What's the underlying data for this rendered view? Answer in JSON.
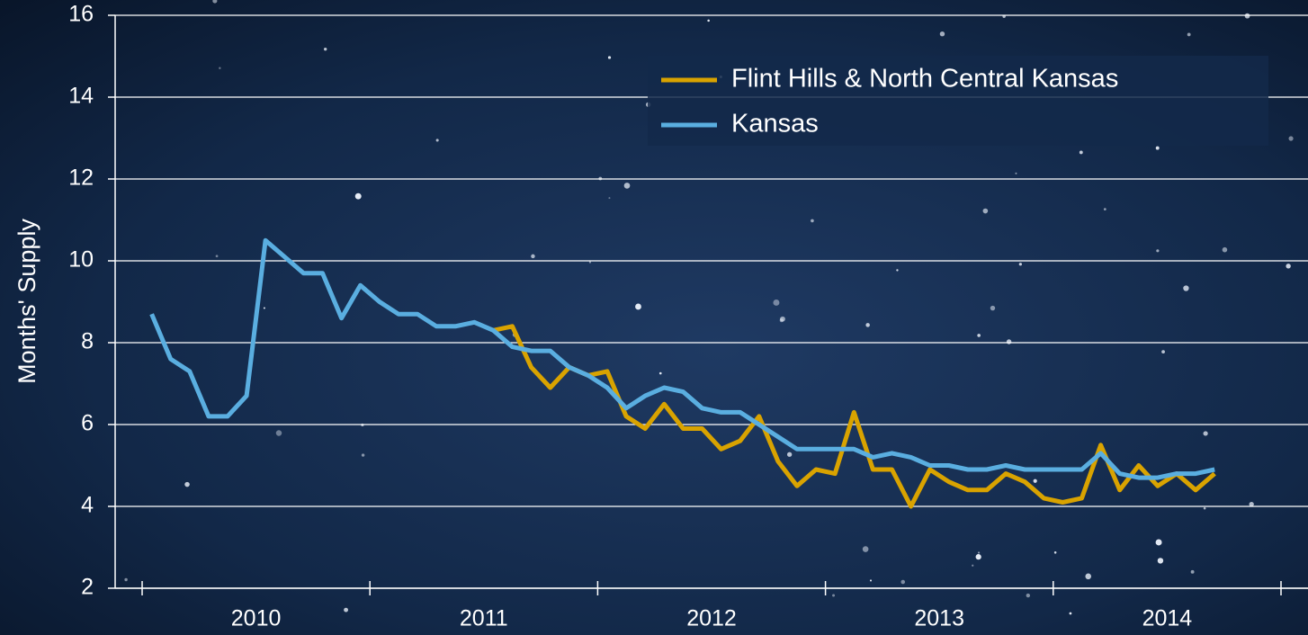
{
  "chart_data": {
    "type": "line",
    "y_label": "Months' Supply",
    "categories": [
      null,
      null,
      null,
      null,
      null,
      null,
      "2010",
      null,
      null,
      null,
      null,
      null,
      null,
      null,
      null,
      null,
      null,
      null,
      "2011",
      null,
      null,
      null,
      null,
      null,
      null,
      null,
      null,
      null,
      null,
      null,
      "2012",
      null,
      null,
      null,
      null,
      null,
      null,
      null,
      null,
      null,
      null,
      null,
      "2013",
      null,
      null,
      null,
      null,
      null,
      null,
      null,
      null,
      null,
      null,
      null,
      "2014",
      null,
      null,
      null,
      null,
      null
    ],
    "series": [
      {
        "name": "Flint Hills & North Central Kansas",
        "color": "#d9a300",
        "values": [
          null,
          null,
          null,
          null,
          null,
          null,
          null,
          null,
          null,
          null,
          null,
          null,
          null,
          null,
          null,
          null,
          null,
          null,
          8.3,
          8.4,
          7.4,
          6.9,
          7.4,
          7.2,
          7.3,
          6.2,
          5.9,
          6.5,
          5.9,
          5.9,
          5.4,
          5.6,
          6.2,
          5.1,
          4.5,
          4.9,
          4.8,
          6.3,
          4.9,
          4.9,
          4.0,
          4.9,
          4.6,
          4.4,
          4.4,
          4.8,
          4.6,
          4.2,
          4.1,
          4.2,
          5.5,
          4.4,
          5.0,
          4.5,
          4.8,
          4.4,
          4.8,
          null,
          null,
          null
        ]
      },
      {
        "name": "Kansas",
        "color": "#5aaee0",
        "values": [
          8.7,
          7.6,
          7.3,
          6.2,
          6.2,
          6.7,
          10.5,
          10.1,
          9.7,
          9.7,
          8.6,
          9.4,
          9.0,
          8.7,
          8.7,
          8.4,
          8.4,
          8.5,
          8.3,
          7.9,
          7.8,
          7.8,
          7.4,
          7.2,
          6.9,
          6.4,
          6.7,
          6.9,
          6.8,
          6.4,
          6.3,
          6.3,
          6.0,
          5.7,
          5.4,
          5.4,
          5.4,
          5.4,
          5.2,
          5.3,
          5.2,
          5.0,
          5.0,
          4.9,
          4.9,
          5.0,
          4.9,
          4.9,
          4.9,
          4.9,
          5.3,
          4.8,
          4.7,
          4.7,
          4.8,
          4.8,
          4.9,
          null,
          null,
          null
        ]
      }
    ],
    "ylim": [
      2,
      16
    ],
    "yticks": [
      2,
      4,
      6,
      8,
      10,
      12,
      14,
      16
    ],
    "grid": true,
    "legend": "top-right"
  }
}
